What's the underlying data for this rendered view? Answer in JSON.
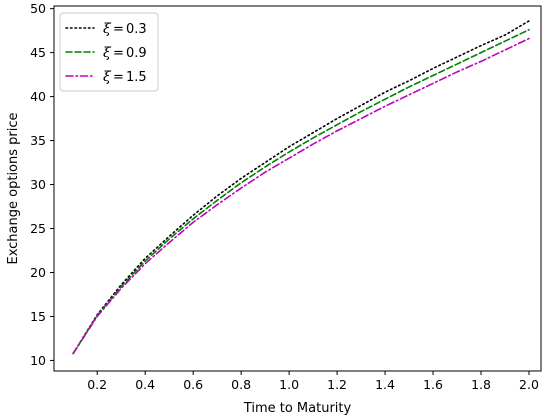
{
  "chart_data": {
    "type": "line",
    "xlabel": "Time to Maturity",
    "ylabel": "Exchange options price",
    "xlim": [
      0.02,
      2.05
    ],
    "ylim": [
      8.8,
      50.3
    ],
    "xticks": [
      0.2,
      0.4,
      0.6,
      0.8,
      1.0,
      1.2,
      1.4,
      1.6,
      1.8,
      2.0
    ],
    "xtick_labels": [
      "0.2",
      "0.4",
      "0.6",
      "0.8",
      "1.0",
      "1.2",
      "1.4",
      "1.6",
      "1.8",
      "2.0"
    ],
    "yticks": [
      10,
      15,
      20,
      25,
      30,
      35,
      40,
      45,
      50
    ],
    "ytick_labels": [
      "10",
      "15",
      "20",
      "25",
      "30",
      "35",
      "40",
      "45",
      "50"
    ],
    "grid": false,
    "legend_position": "top-left",
    "x": [
      0.1,
      0.2,
      0.3,
      0.4,
      0.5,
      0.6,
      0.7,
      0.8,
      0.9,
      1.0,
      1.1,
      1.2,
      1.3,
      1.4,
      1.5,
      1.6,
      1.7,
      1.8,
      1.9,
      2.0
    ],
    "series": [
      {
        "name": "0.3",
        "legend_symbol": "ξ",
        "legend_operator": "=",
        "color": "#000000",
        "dash": "dotted",
        "values": [
          10.8,
          15.2,
          18.6,
          21.6,
          24.1,
          26.5,
          28.7,
          30.7,
          32.5,
          34.3,
          35.9,
          37.5,
          39.0,
          40.5,
          41.8,
          43.2,
          44.5,
          45.8,
          47.0,
          48.6
        ]
      },
      {
        "name": "0.9",
        "legend_symbol": "ξ",
        "legend_operator": "=",
        "color": "#008000",
        "dash": "dashed",
        "values": [
          10.8,
          15.1,
          18.4,
          21.3,
          23.8,
          26.1,
          28.2,
          30.2,
          32.0,
          33.7,
          35.3,
          36.8,
          38.3,
          39.7,
          41.1,
          42.4,
          43.7,
          45.0,
          46.3,
          47.6
        ]
      },
      {
        "name": "1.5",
        "legend_symbol": "ξ",
        "legend_operator": "=",
        "color": "#bf00bf",
        "dash": "dashdot",
        "values": [
          10.8,
          15.0,
          18.2,
          21.0,
          23.4,
          25.7,
          27.7,
          29.6,
          31.4,
          33.0,
          34.6,
          36.1,
          37.5,
          38.9,
          40.2,
          41.5,
          42.8,
          44.0,
          45.3,
          46.6
        ]
      }
    ]
  }
}
